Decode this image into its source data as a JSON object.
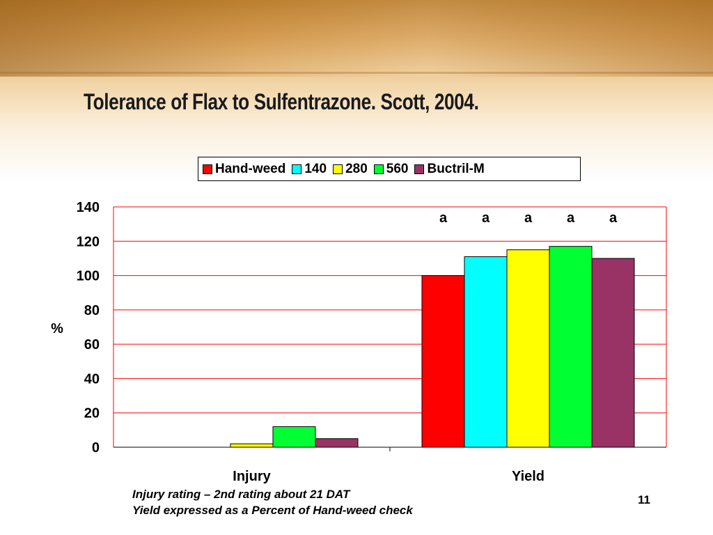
{
  "slide": {
    "title": "Tolerance of Flax to Sulfentrazone.  Scott, 2004.",
    "footnotes": [
      "Injury rating – 2nd rating about 21 DAT",
      "Yield expressed as a Percent of Hand-weed check"
    ],
    "slide_number": "11"
  },
  "chart_data": {
    "type": "bar",
    "categories": [
      "Injury",
      "Yield"
    ],
    "series": [
      {
        "name": "Hand-weed",
        "color": "#ff0000",
        "values": [
          0,
          100
        ]
      },
      {
        "name": "140",
        "color": "#00ffff",
        "values": [
          0,
          111
        ]
      },
      {
        "name": "280",
        "color": "#ffff00",
        "values": [
          2,
          115
        ]
      },
      {
        "name": "560",
        "color": "#00ff33",
        "values": [
          12,
          117
        ]
      },
      {
        "name": "Buctril-M",
        "color": "#993366",
        "values": [
          5,
          110
        ]
      }
    ],
    "ylabel": "%",
    "ylim": [
      0,
      140
    ],
    "yticks": [
      "0",
      "20",
      "40",
      "60",
      "80",
      "100",
      "120",
      "140"
    ],
    "grid": true,
    "grid_color": "#ff0000",
    "legend_position": "top",
    "annotations": [
      {
        "category": "Yield",
        "series": "Hand-weed",
        "text": "a"
      },
      {
        "category": "Yield",
        "series": "140",
        "text": "a"
      },
      {
        "category": "Yield",
        "series": "280",
        "text": "a"
      },
      {
        "category": "Yield",
        "series": "560",
        "text": "a"
      },
      {
        "category": "Yield",
        "series": "Buctril-M",
        "text": "a"
      }
    ]
  }
}
